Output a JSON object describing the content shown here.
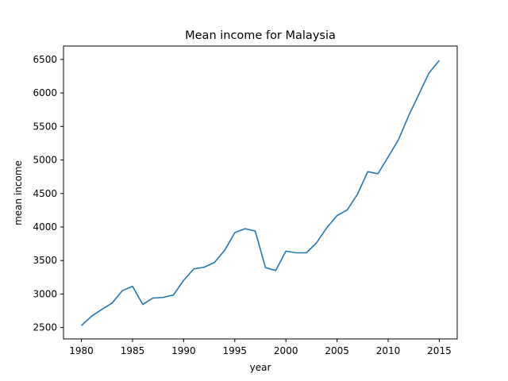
{
  "chart_data": {
    "type": "line",
    "title": "Mean income for Malaysia",
    "xlabel": "year",
    "ylabel": "mean income",
    "xlim": [
      1978.25,
      2016.75
    ],
    "ylim": [
      2330,
      6700
    ],
    "xticks": [
      1980,
      1985,
      1990,
      1995,
      2000,
      2005,
      2010,
      2015
    ],
    "yticks": [
      2500,
      3000,
      3500,
      4000,
      4500,
      5000,
      5500,
      6000,
      6500
    ],
    "grid": false,
    "series": [
      {
        "color": "#1f77b4",
        "x": [
          1980,
          1981,
          1982,
          1983,
          1984,
          1985,
          1986,
          1987,
          1988,
          1989,
          1990,
          1991,
          1992,
          1993,
          1994,
          1995,
          1996,
          1997,
          1998,
          1999,
          2000,
          2001,
          2002,
          2003,
          2004,
          2005,
          2006,
          2007,
          2008,
          2009,
          2010,
          2011,
          2012,
          2013,
          2014,
          2015
        ],
        "y": [
          2530,
          2670,
          2770,
          2865,
          3050,
          3115,
          2845,
          2940,
          2950,
          2985,
          3205,
          3375,
          3400,
          3470,
          3650,
          3915,
          3975,
          3940,
          3395,
          3350,
          3640,
          3615,
          3615,
          3765,
          3990,
          4170,
          4255,
          4490,
          4825,
          4795,
          5045,
          5300,
          5660,
          5980,
          6300,
          6485
        ]
      }
    ]
  }
}
